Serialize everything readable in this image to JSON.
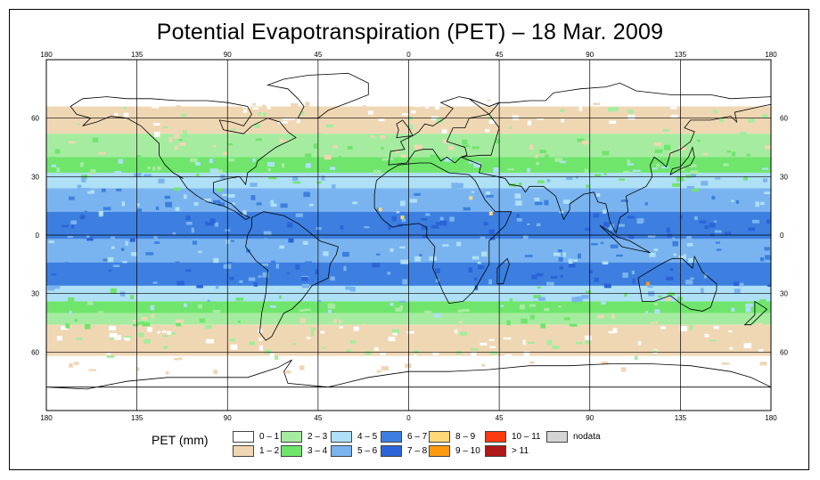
{
  "title": "Potential Evapotranspiration (PET) – 18 Mar. 2009",
  "map": {
    "projection": "equirectangular",
    "lon_range": [
      -180,
      180
    ],
    "lat_range": [
      -90,
      90
    ],
    "top_tick_labels": [
      "180",
      "135",
      "90",
      "45",
      "0",
      "45",
      "90",
      "135",
      "180"
    ],
    "bottom_tick_labels": [
      "180",
      "135",
      "90",
      "45",
      "0",
      "45",
      "90",
      "135",
      "180"
    ],
    "left_tick_labels": [
      "60",
      "30",
      "0",
      "30",
      "60"
    ],
    "right_tick_labels": [
      "60",
      "30",
      "0",
      "30",
      "60"
    ],
    "gridlines_lon": [
      -135,
      -90,
      -45,
      0,
      45,
      90,
      135
    ],
    "gridlines_lat": [
      60,
      30,
      0,
      -30,
      -60
    ]
  },
  "legend": {
    "title": "PET (mm)",
    "items": [
      {
        "label": "0 – 1",
        "color": "#ffffff"
      },
      {
        "label": "1 – 2",
        "color": "#f0d7b4"
      },
      {
        "label": "2 – 3",
        "color": "#a6eca0"
      },
      {
        "label": "3 – 4",
        "color": "#6fe56c"
      },
      {
        "label": "4 – 5",
        "color": "#aee0f6"
      },
      {
        "label": "5 – 6",
        "color": "#7ab4f0"
      },
      {
        "label": "6 – 7",
        "color": "#3c7fe0"
      },
      {
        "label": "7 – 8",
        "color": "#2b64d8"
      },
      {
        "label": "8 – 9",
        "color": "#ffd878"
      },
      {
        "label": "9 – 10",
        "color": "#ff9a10"
      },
      {
        "label": "10 – 11",
        "color": "#ff3a10"
      },
      {
        "label": "> 11",
        "color": "#b01818"
      },
      {
        "label": "nodata",
        "color": "#d4d4d4"
      }
    ]
  },
  "zones": [
    {
      "lat_from": 90,
      "lat_to": 66,
      "category": 0
    },
    {
      "lat_from": 66,
      "lat_to": 52,
      "category": 1
    },
    {
      "lat_from": 52,
      "lat_to": 40,
      "category": 2
    },
    {
      "lat_from": 40,
      "lat_to": 32,
      "category": 3
    },
    {
      "lat_from": 32,
      "lat_to": 24,
      "category": 4
    },
    {
      "lat_from": 24,
      "lat_to": 12,
      "category": 5
    },
    {
      "lat_from": 12,
      "lat_to": -2,
      "category": 6
    },
    {
      "lat_from": -2,
      "lat_to": -14,
      "category": 5
    },
    {
      "lat_from": -14,
      "lat_to": -26,
      "category": 6
    },
    {
      "lat_from": -26,
      "lat_to": -34,
      "category": 4
    },
    {
      "lat_from": -34,
      "lat_to": -40,
      "category": 3
    },
    {
      "lat_from": -40,
      "lat_to": -46,
      "category": 2
    },
    {
      "lat_from": -46,
      "lat_to": -62,
      "category": 1
    },
    {
      "lat_from": -62,
      "lat_to": -90,
      "category": 0
    }
  ]
}
